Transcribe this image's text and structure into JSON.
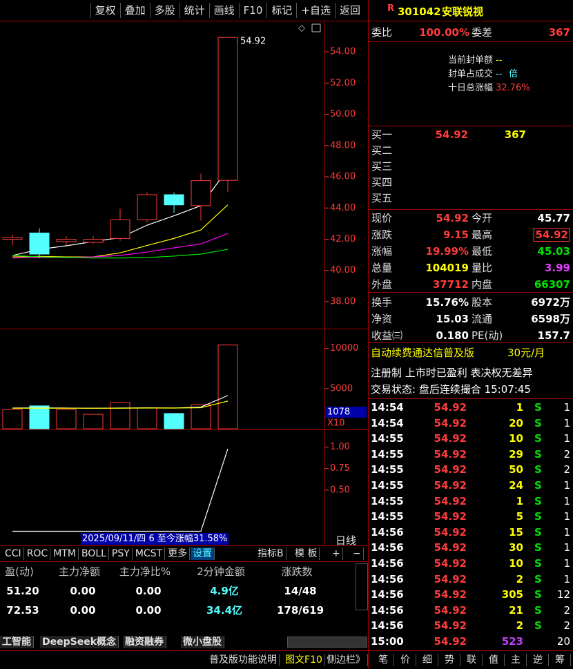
{
  "toolbar": [
    "复权",
    "叠加",
    "多股",
    "统计",
    "画线",
    "F10",
    "标记",
    "+自选",
    "返回"
  ],
  "stock": {
    "flag": "R",
    "code": "301042",
    "name": "安联锐视"
  },
  "order_ratio": {
    "label": "委比",
    "value": "100.00%",
    "diff_label": "委差",
    "diff": "367"
  },
  "seal": [
    {
      "label": "当前封单额",
      "value": "--"
    },
    {
      "label": "封单占成交",
      "value": "--",
      "unit": "倍"
    },
    {
      "label": "十日总涨幅",
      "value": "32.76%"
    }
  ],
  "bids": [
    {
      "label": "买一",
      "price": "54.92",
      "volume": "367"
    },
    {
      "label": "买二"
    },
    {
      "label": "买三"
    },
    {
      "label": "买四"
    },
    {
      "label": "买五"
    }
  ],
  "quote": [
    {
      "l1": "现价",
      "v1": "54.92",
      "c1": "red",
      "l2": "今开",
      "v2": "45.77",
      "c2": "white"
    },
    {
      "l1": "涨跌",
      "v1": "9.15",
      "c1": "red",
      "l2": "最高",
      "v2": "54.92",
      "c2": "red",
      "box": true
    },
    {
      "l1": "涨幅",
      "v1": "19.99%",
      "c1": "red",
      "l2": "最低",
      "v2": "45.03",
      "c2": "green"
    },
    {
      "l1": "总量",
      "v1": "104019",
      "c1": "yellow",
      "l2": "量比",
      "v2": "3.99",
      "c2": "purple"
    },
    {
      "l1": "外盘",
      "v1": "37712",
      "c1": "red",
      "l2": "内盘",
      "v2": "66307",
      "c2": "green"
    },
    {
      "l1": "换手",
      "v1": "15.76%",
      "c1": "white",
      "l2": "股本",
      "v2": "6972万",
      "c2": "white"
    },
    {
      "l1": "净资",
      "v1": "15.03",
      "c1": "white",
      "l2": "流通",
      "v2": "6598万",
      "c2": "white"
    },
    {
      "l1": "收益㈢",
      "v1": "0.180",
      "c1": "white",
      "l2": "PE(动)",
      "v2": "157.7",
      "c2": "white"
    }
  ],
  "banner": {
    "text": "自动续费通达信普及版",
    "price": "30元/月"
  },
  "notice": "注册制 上市时已盈利 表决权无差异",
  "status": "交易状态: 盘后连续撮合 15:07:45",
  "ticks": [
    {
      "time": "14:54",
      "price": "54.92",
      "volume": "1",
      "side": "S",
      "count": "1"
    },
    {
      "time": "14:54",
      "price": "54.92",
      "volume": "20",
      "side": "S",
      "count": "1"
    },
    {
      "time": "14:55",
      "price": "54.92",
      "volume": "10",
      "side": "S",
      "count": "1"
    },
    {
      "time": "14:55",
      "price": "54.92",
      "volume": "29",
      "side": "S",
      "count": "2"
    },
    {
      "time": "14:55",
      "price": "54.92",
      "volume": "50",
      "side": "S",
      "count": "2"
    },
    {
      "time": "14:55",
      "price": "54.92",
      "volume": "24",
      "side": "S",
      "count": "1"
    },
    {
      "time": "14:55",
      "price": "54.92",
      "volume": "1",
      "side": "S",
      "count": "1"
    },
    {
      "time": "14:55",
      "price": "54.92",
      "volume": "5",
      "side": "S",
      "count": "1"
    },
    {
      "time": "14:56",
      "price": "54.92",
      "volume": "15",
      "side": "S",
      "count": "1"
    },
    {
      "time": "14:56",
      "price": "54.92",
      "volume": "30",
      "side": "S",
      "count": "1"
    },
    {
      "time": "14:56",
      "price": "54.92",
      "volume": "10",
      "side": "S",
      "count": "1"
    },
    {
      "time": "14:56",
      "price": "54.92",
      "volume": "2",
      "side": "S",
      "count": "1"
    },
    {
      "time": "14:56",
      "price": "54.92",
      "volume": "305",
      "side": "S",
      "count": "12"
    },
    {
      "time": "14:56",
      "price": "54.92",
      "volume": "21",
      "side": "S",
      "count": "2"
    },
    {
      "time": "14:56",
      "price": "54.92",
      "volume": "2",
      "side": "S",
      "count": "2"
    },
    {
      "time": "15:00",
      "price": "54.92",
      "volume": "523",
      "count": "20",
      "color": "#c040ff"
    }
  ],
  "chart_data": [
    {
      "type": "candlestick",
      "annotation": "54.92",
      "up_color": "#ff3c3c",
      "down_color": "#54ffff",
      "open": [
        42.0,
        42.4,
        41.85,
        41.8,
        42.05,
        43.25,
        44.85,
        44.15,
        45.77
      ],
      "high": [
        42.3,
        42.7,
        42.2,
        42.2,
        43.95,
        45.0,
        45.0,
        46.2,
        54.92
      ],
      "low": [
        41.6,
        40.8,
        41.6,
        41.7,
        41.9,
        43.1,
        43.7,
        43.2,
        45.03
      ],
      "close": [
        42.1,
        41.05,
        42.0,
        42.0,
        43.25,
        44.85,
        44.2,
        45.75,
        54.92
      ],
      "series": [
        {
          "color": "#ffffff",
          "values": [
            40.96,
            41.35,
            41.58,
            41.85,
            42.1,
            42.9,
            43.5,
            44.15,
            46.5
          ]
        },
        {
          "color": "#ffff00",
          "values": [
            40.87,
            40.9,
            40.87,
            40.87,
            41.13,
            41.6,
            42.05,
            42.6,
            44.2
          ]
        },
        {
          "color": "#ff00ff",
          "values": [
            40.8,
            40.83,
            40.83,
            40.87,
            40.96,
            41.18,
            41.45,
            41.7,
            42.37
          ]
        },
        {
          "color": "#00e600",
          "values": [
            40.96,
            40.87,
            40.83,
            40.8,
            40.8,
            40.83,
            40.92,
            41.05,
            41.35
          ]
        }
      ],
      "ylim": [
        36.32,
        55.99
      ],
      "yticks": [
        {
          "value": 38,
          "label": "38.00"
        },
        {
          "value": 40,
          "label": "40.00"
        },
        {
          "value": 42,
          "label": "42.00"
        },
        {
          "value": 44,
          "label": "44.00"
        },
        {
          "value": 46,
          "label": "46.00"
        },
        {
          "value": 48,
          "label": "48.00"
        },
        {
          "value": 50,
          "label": "50.00"
        },
        {
          "value": 52,
          "label": "52.00"
        },
        {
          "value": 54,
          "label": "54.00"
        }
      ]
    },
    {
      "type": "bar",
      "cursor_label": "1078",
      "multiplier_label": "X10",
      "values": [
        2400,
        2850,
        2400,
        1800,
        3270,
        2590,
        1900,
        3000,
        10430
      ],
      "series": [
        {
          "color": "#ffffff",
          "values": [
            2580,
            2600,
            2580,
            2550,
            2580,
            2600,
            2580,
            2700,
            4140
          ]
        },
        {
          "color": "#ffff00",
          "values": [
            2560,
            2560,
            2560,
            2560,
            2560,
            2580,
            2580,
            2620,
            3440
          ]
        }
      ],
      "ylim": [
        0,
        12300
      ],
      "yticks": [
        5000,
        10000
      ]
    },
    {
      "type": "line",
      "series": [
        {
          "color": "#ffffff",
          "values": [
            0.02,
            0.02,
            0.02,
            0.02,
            0.02,
            0.02,
            0.02,
            0.02,
            0.98
          ]
        }
      ],
      "ylim": [
        0,
        1.19
      ],
      "yticks": [
        {
          "value": 0.5,
          "label": "0.50"
        },
        {
          "value": 0.75,
          "label": "0.75"
        },
        {
          "value": 1,
          "label": "1.00"
        }
      ]
    }
  ],
  "date_strip": "2025/09/11/四 6 至今涨幅31.58%",
  "period": "日线",
  "indicator_tabs": [
    "CCI",
    "ROC",
    "MTM",
    "BOLL",
    "PSY",
    "MCST",
    "更多",
    "设置"
  ],
  "template_tabs": [
    "指标B",
    "模 板"
  ],
  "zoom_tabs": [
    "+",
    "−"
  ],
  "table": {
    "headers": [
      "盈(动)",
      "主力净额",
      "主力净比%",
      "2分钟金额",
      "涨跌数"
    ],
    "rows": [
      [
        "51.20",
        "0.00",
        "0.00",
        "4.9亿",
        "14/48"
      ],
      [
        "72.53",
        "0.00",
        "0.00",
        "34.4亿",
        "178/619"
      ]
    ]
  },
  "sector_tabs": [
    "工智能",
    "DeepSeek概念",
    "融资融券",
    "微小盘股"
  ],
  "footer": [
    "普及版功能说明",
    "图文F10",
    "侧边栏》"
  ],
  "side_tabs": [
    "笔",
    "价",
    "细",
    "势",
    "联",
    "值",
    "主",
    "逆",
    "筹"
  ]
}
